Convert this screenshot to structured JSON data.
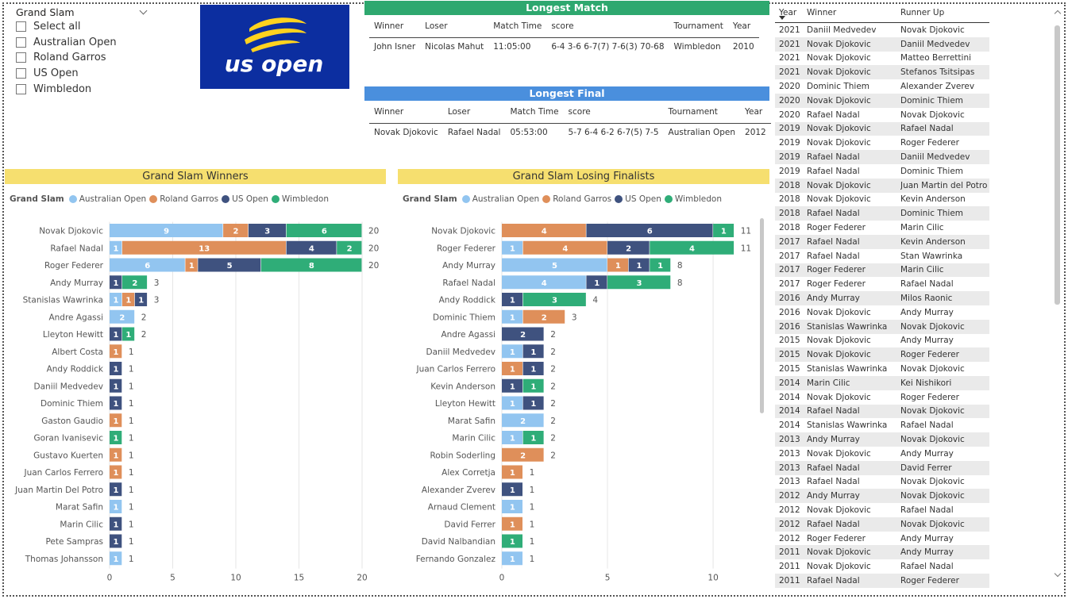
{
  "slicer": {
    "title": "Grand Slam",
    "items": [
      "Select all",
      "Australian Open",
      "Roland Garros",
      "US Open",
      "Wimbledon"
    ]
  },
  "logo": {
    "text": "us open",
    "icon": "us-open-logo-icon"
  },
  "longest_match": {
    "title": "Longest Match",
    "header_color": "#2ea86f",
    "headers": [
      "Winner",
      "Loser",
      "Match Time",
      "score",
      "Tournament",
      "Year"
    ],
    "row": [
      "John Isner",
      "Nicolas Mahut",
      "11:05:00",
      "6-4 3-6 6-7(7) 7-6(3) 70-68",
      "Wimbledon",
      "2010"
    ]
  },
  "longest_final": {
    "title": "Longest Final",
    "header_color": "#4a8fdd",
    "headers": [
      "Winner",
      "Loser",
      "Match Time",
      "score",
      "Tournament",
      "Year"
    ],
    "row": [
      "Novak Djokovic",
      "Rafael Nadal",
      "05:53:00",
      "5-7 6-4 6-2 6-7(5) 7-5",
      "Australian Open",
      "2012"
    ]
  },
  "colors": {
    "Australian Open": "#92c5f0",
    "Roland Garros": "#df8f5a",
    "US Open": "#3f527f",
    "Wimbledon": "#2fad78"
  },
  "chart_data": [
    {
      "type": "bar",
      "orientation": "horizontal",
      "stacked": true,
      "title": "Grand Slam Winners",
      "legend_title": "Grand Slam",
      "legend_position": "top-left",
      "xlim": [
        0,
        20
      ],
      "xticks": [
        0,
        5,
        10,
        15,
        20
      ],
      "categories": [
        "Novak Djokovic",
        "Rafael Nadal",
        "Roger Federer",
        "Andy Murray",
        "Stanislas Wawrinka",
        "Andre Agassi",
        "Lleyton Hewitt",
        "Albert Costa",
        "Andy Roddick",
        "Daniil Medvedev",
        "Dominic Thiem",
        "Gaston Gaudio",
        "Goran Ivanisevic",
        "Gustavo Kuerten",
        "Juan Carlos Ferrero",
        "Juan Martin Del Potro",
        "Marat Safin",
        "Marin Cilic",
        "Pete Sampras",
        "Thomas Johansson"
      ],
      "series": [
        {
          "name": "Australian Open",
          "values": [
            9,
            1,
            6,
            0,
            1,
            2,
            0,
            0,
            0,
            0,
            0,
            0,
            0,
            0,
            0,
            0,
            1,
            0,
            0,
            1
          ]
        },
        {
          "name": "Roland Garros",
          "values": [
            2,
            13,
            1,
            0,
            1,
            0,
            0,
            1,
            0,
            0,
            0,
            1,
            0,
            1,
            1,
            0,
            0,
            0,
            0,
            0
          ]
        },
        {
          "name": "US Open",
          "values": [
            3,
            4,
            5,
            1,
            1,
            0,
            1,
            0,
            1,
            1,
            1,
            0,
            0,
            0,
            0,
            1,
            0,
            1,
            1,
            0
          ]
        },
        {
          "name": "Wimbledon",
          "values": [
            6,
            2,
            8,
            2,
            0,
            0,
            1,
            0,
            0,
            0,
            0,
            0,
            1,
            0,
            0,
            0,
            0,
            0,
            0,
            0
          ]
        }
      ],
      "totals": [
        20,
        20,
        20,
        3,
        3,
        2,
        2,
        1,
        1,
        1,
        1,
        1,
        1,
        1,
        1,
        1,
        1,
        1,
        1,
        1
      ]
    },
    {
      "type": "bar",
      "orientation": "horizontal",
      "stacked": true,
      "title": "Grand Slam Losing Finalists",
      "legend_title": "Grand Slam",
      "legend_position": "top-left",
      "xlim": [
        0,
        11.5
      ],
      "xticks": [
        0,
        5,
        10
      ],
      "categories": [
        "Novak Djokovic",
        "Roger Federer",
        "Andy Murray",
        "Rafael Nadal",
        "Andy Roddick",
        "Dominic Thiem",
        "Andre Agassi",
        "Daniil Medvedev",
        "Juan Carlos Ferrero",
        "Kevin Anderson",
        "Lleyton Hewitt",
        "Marat Safin",
        "Marin Cilic",
        "Robin Soderling",
        "Alex Corretja",
        "Alexander Zverev",
        "Arnaud Clement",
        "David Ferrer",
        "David Nalbandian",
        "Fernando Gonzalez"
      ],
      "series": [
        {
          "name": "Australian Open",
          "values": [
            0,
            1,
            5,
            4,
            0,
            1,
            0,
            1,
            0,
            0,
            1,
            2,
            1,
            0,
            0,
            0,
            1,
            0,
            0,
            1
          ]
        },
        {
          "name": "Roland Garros",
          "values": [
            4,
            4,
            1,
            0,
            0,
            2,
            0,
            0,
            1,
            0,
            0,
            0,
            0,
            2,
            1,
            0,
            0,
            1,
            0,
            0
          ]
        },
        {
          "name": "US Open",
          "values": [
            6,
            2,
            1,
            1,
            1,
            0,
            2,
            1,
            1,
            1,
            1,
            0,
            0,
            0,
            0,
            1,
            0,
            0,
            0,
            0
          ]
        },
        {
          "name": "Wimbledon",
          "values": [
            1,
            4,
            1,
            3,
            3,
            0,
            0,
            0,
            0,
            1,
            0,
            0,
            1,
            0,
            0,
            0,
            0,
            0,
            1,
            0
          ]
        }
      ],
      "totals": [
        11,
        11,
        8,
        8,
        4,
        3,
        2,
        2,
        2,
        2,
        2,
        2,
        2,
        2,
        1,
        1,
        1,
        1,
        1,
        1
      ]
    }
  ],
  "results": {
    "headers": [
      "Year",
      "Winner",
      "Runner Up"
    ],
    "rows": [
      [
        "2021",
        "Daniil Medvedev",
        "Novak Djokovic"
      ],
      [
        "2021",
        "Novak Djokovic",
        "Daniil Medvedev"
      ],
      [
        "2021",
        "Novak Djokovic",
        "Matteo Berrettini"
      ],
      [
        "2021",
        "Novak Djokovic",
        "Stefanos Tsitsipas"
      ],
      [
        "2020",
        "Dominic Thiem",
        "Alexander Zverev"
      ],
      [
        "2020",
        "Novak Djokovic",
        "Dominic Thiem"
      ],
      [
        "2020",
        "Rafael Nadal",
        "Novak Djokovic"
      ],
      [
        "2019",
        "Novak Djokovic",
        "Rafael Nadal"
      ],
      [
        "2019",
        "Novak Djokovic",
        "Roger Federer"
      ],
      [
        "2019",
        "Rafael Nadal",
        "Daniil Medvedev"
      ],
      [
        "2019",
        "Rafael Nadal",
        "Dominic Thiem"
      ],
      [
        "2018",
        "Novak Djokovic",
        "Juan Martin del Potro"
      ],
      [
        "2018",
        "Novak Djokovic",
        "Kevin Anderson"
      ],
      [
        "2018",
        "Rafael Nadal",
        "Dominic Thiem"
      ],
      [
        "2018",
        "Roger Federer",
        "Marin Cilic"
      ],
      [
        "2017",
        "Rafael Nadal",
        "Kevin Anderson"
      ],
      [
        "2017",
        "Rafael Nadal",
        "Stan Wawrinka"
      ],
      [
        "2017",
        "Roger Federer",
        "Marin Cilic"
      ],
      [
        "2017",
        "Roger Federer",
        "Rafael Nadal"
      ],
      [
        "2016",
        "Andy Murray",
        "Milos Raonic"
      ],
      [
        "2016",
        "Novak Djokovic",
        "Andy Murray"
      ],
      [
        "2016",
        "Stanislas Wawrinka",
        "Novak Djokovic"
      ],
      [
        "2015",
        "Novak Djokovic",
        "Andy Murray"
      ],
      [
        "2015",
        "Novak Djokovic",
        "Roger Federer"
      ],
      [
        "2015",
        "Stanislas Wawrinka",
        "Novak Djokovic"
      ],
      [
        "2014",
        "Marin Cilic",
        "Kei Nishikori"
      ],
      [
        "2014",
        "Novak Djokovic",
        "Roger Federer"
      ],
      [
        "2014",
        "Rafael Nadal",
        "Novak Djokovic"
      ],
      [
        "2014",
        "Stanislas Wawrinka",
        "Rafael Nadal"
      ],
      [
        "2013",
        "Andy Murray",
        "Novak Djokovic"
      ],
      [
        "2013",
        "Novak Djokovic",
        "Andy Murray"
      ],
      [
        "2013",
        "Rafael Nadal",
        "David Ferrer"
      ],
      [
        "2013",
        "Rafael Nadal",
        "Novak Djokovic"
      ],
      [
        "2012",
        "Andy Murray",
        "Novak Djokovic"
      ],
      [
        "2012",
        "Novak Djokovic",
        "Rafael Nadal"
      ],
      [
        "2012",
        "Rafael Nadal",
        "Novak Djokovic"
      ],
      [
        "2012",
        "Roger Federer",
        "Andy Murray"
      ],
      [
        "2011",
        "Novak Djokovic",
        "Andy Murray"
      ],
      [
        "2011",
        "Novak Djokovic",
        "Rafael Nadal"
      ],
      [
        "2011",
        "Rafael Nadal",
        "Roger Federer"
      ]
    ]
  }
}
